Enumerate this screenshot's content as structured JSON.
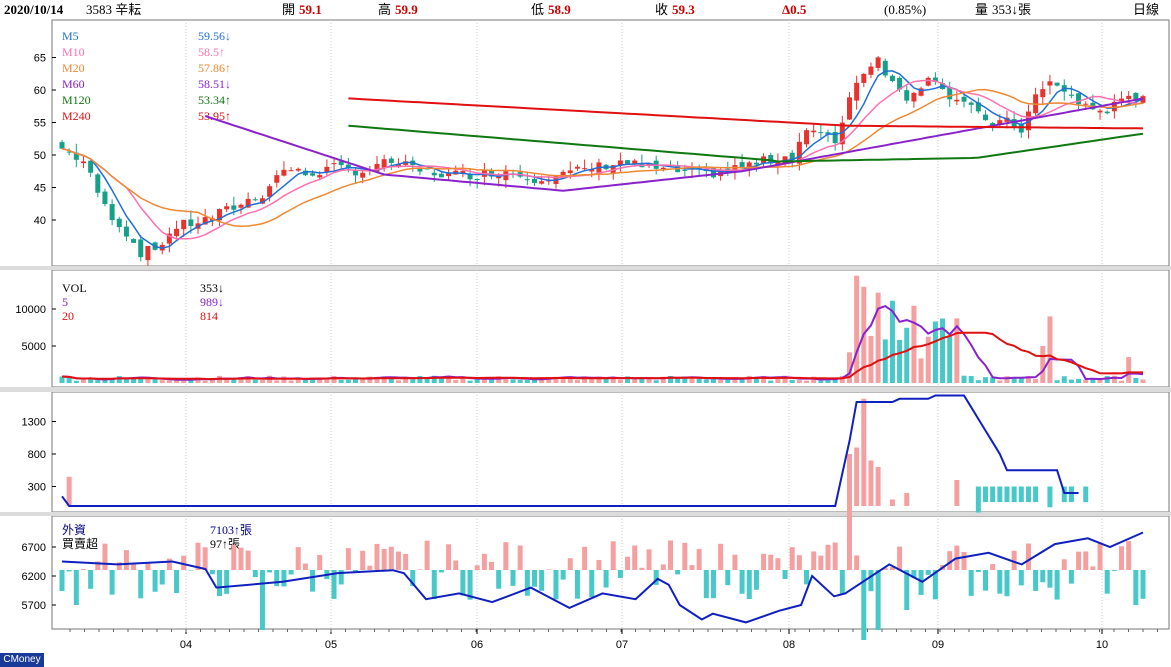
{
  "header": {
    "date": "2020/10/14",
    "stock": "3583 辛耘",
    "open_label": "開",
    "open_value": "59.1",
    "high_label": "高",
    "high_value": "59.9",
    "low_label": "低",
    "low_value": "58.9",
    "close_label": "收",
    "close_value": "59.3",
    "change": "Δ0.5",
    "change_pct": "(0.85%)",
    "volume_label": "量",
    "volume_value": "353↓張",
    "period": "日線"
  },
  "brand": "CMoney",
  "months": [
    "04",
    "05",
    "06",
    "07",
    "08",
    "09",
    "10"
  ],
  "panels": {
    "price": {
      "ticks": [
        "65",
        "60",
        "55",
        "50",
        "45",
        "40"
      ],
      "legend": [
        {
          "name": "M5",
          "value": "59.56↓",
          "color": "#1f6fd6"
        },
        {
          "name": "M10",
          "value": "58.5↑",
          "color": "#ff6fb0"
        },
        {
          "name": "M20",
          "value": "57.86↑",
          "color": "#ee8833"
        },
        {
          "name": "M60",
          "value": "58.51↓",
          "color": "#8a22cc"
        },
        {
          "name": "M120",
          "value": "53.34↑",
          "color": "#107810"
        },
        {
          "name": "M240",
          "value": "53.95↑",
          "color": "#e01010"
        }
      ]
    },
    "volume": {
      "ticks": [
        "10000",
        "5000"
      ],
      "legend": [
        {
          "name": "VOL",
          "value": "353↓",
          "color": "#000000"
        },
        {
          "name": "5",
          "value": "989↓",
          "color": "#8a22cc"
        },
        {
          "name": "20",
          "value": "814",
          "color": "#e01010"
        }
      ]
    },
    "third": {
      "ticks": [
        "1300",
        "800",
        "300"
      ]
    },
    "foreign": {
      "ticks": [
        "6700",
        "6200",
        "5700"
      ],
      "legend": [
        {
          "name": "外資",
          "value": "7103↑張",
          "color": "#000080"
        },
        {
          "name": "買賣超",
          "value": "97↑張",
          "color": "#000000"
        }
      ]
    }
  },
  "colors": {
    "up": "#e8322e",
    "down": "#16a08a",
    "upFill": "#f5a0a0",
    "downFill": "#48c8c8",
    "line": "#1020c0"
  }
}
